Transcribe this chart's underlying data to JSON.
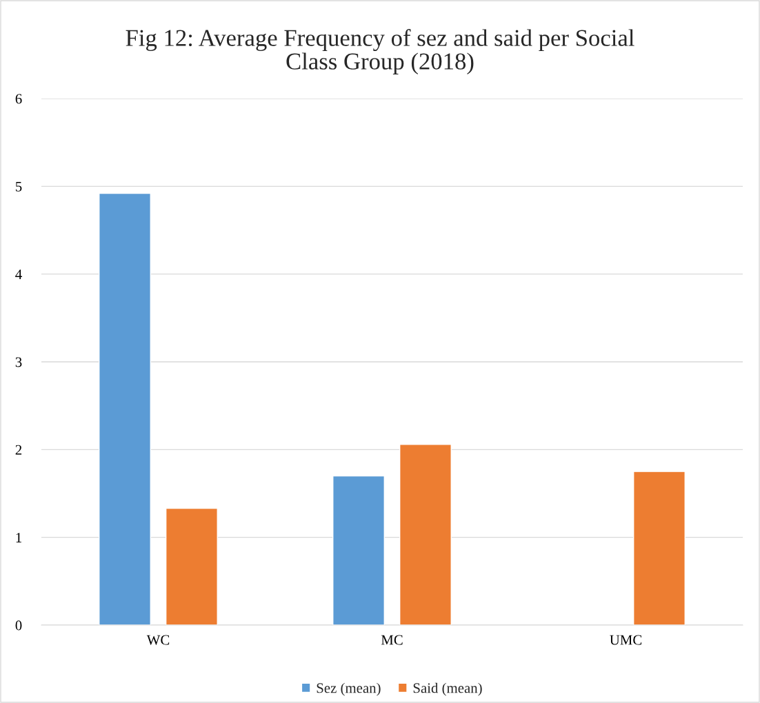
{
  "chart_data": {
    "type": "bar",
    "title": "Fig 12: Average Frequency of sez and said per Social\nClass Group (2018)",
    "categories": [
      "WC",
      "MC",
      "UMC"
    ],
    "series": [
      {
        "name": "Sez (mean)",
        "color": "#5b9bd5",
        "values": [
          4.92,
          1.7,
          null
        ]
      },
      {
        "name": "Said (mean)",
        "color": "#ed7d31",
        "values": [
          1.33,
          2.06,
          1.75
        ]
      }
    ],
    "ylim": [
      0,
      6
    ],
    "yticks": [
      0,
      1,
      2,
      3,
      4,
      5,
      6
    ],
    "grid": "y",
    "legend": "bottom"
  }
}
